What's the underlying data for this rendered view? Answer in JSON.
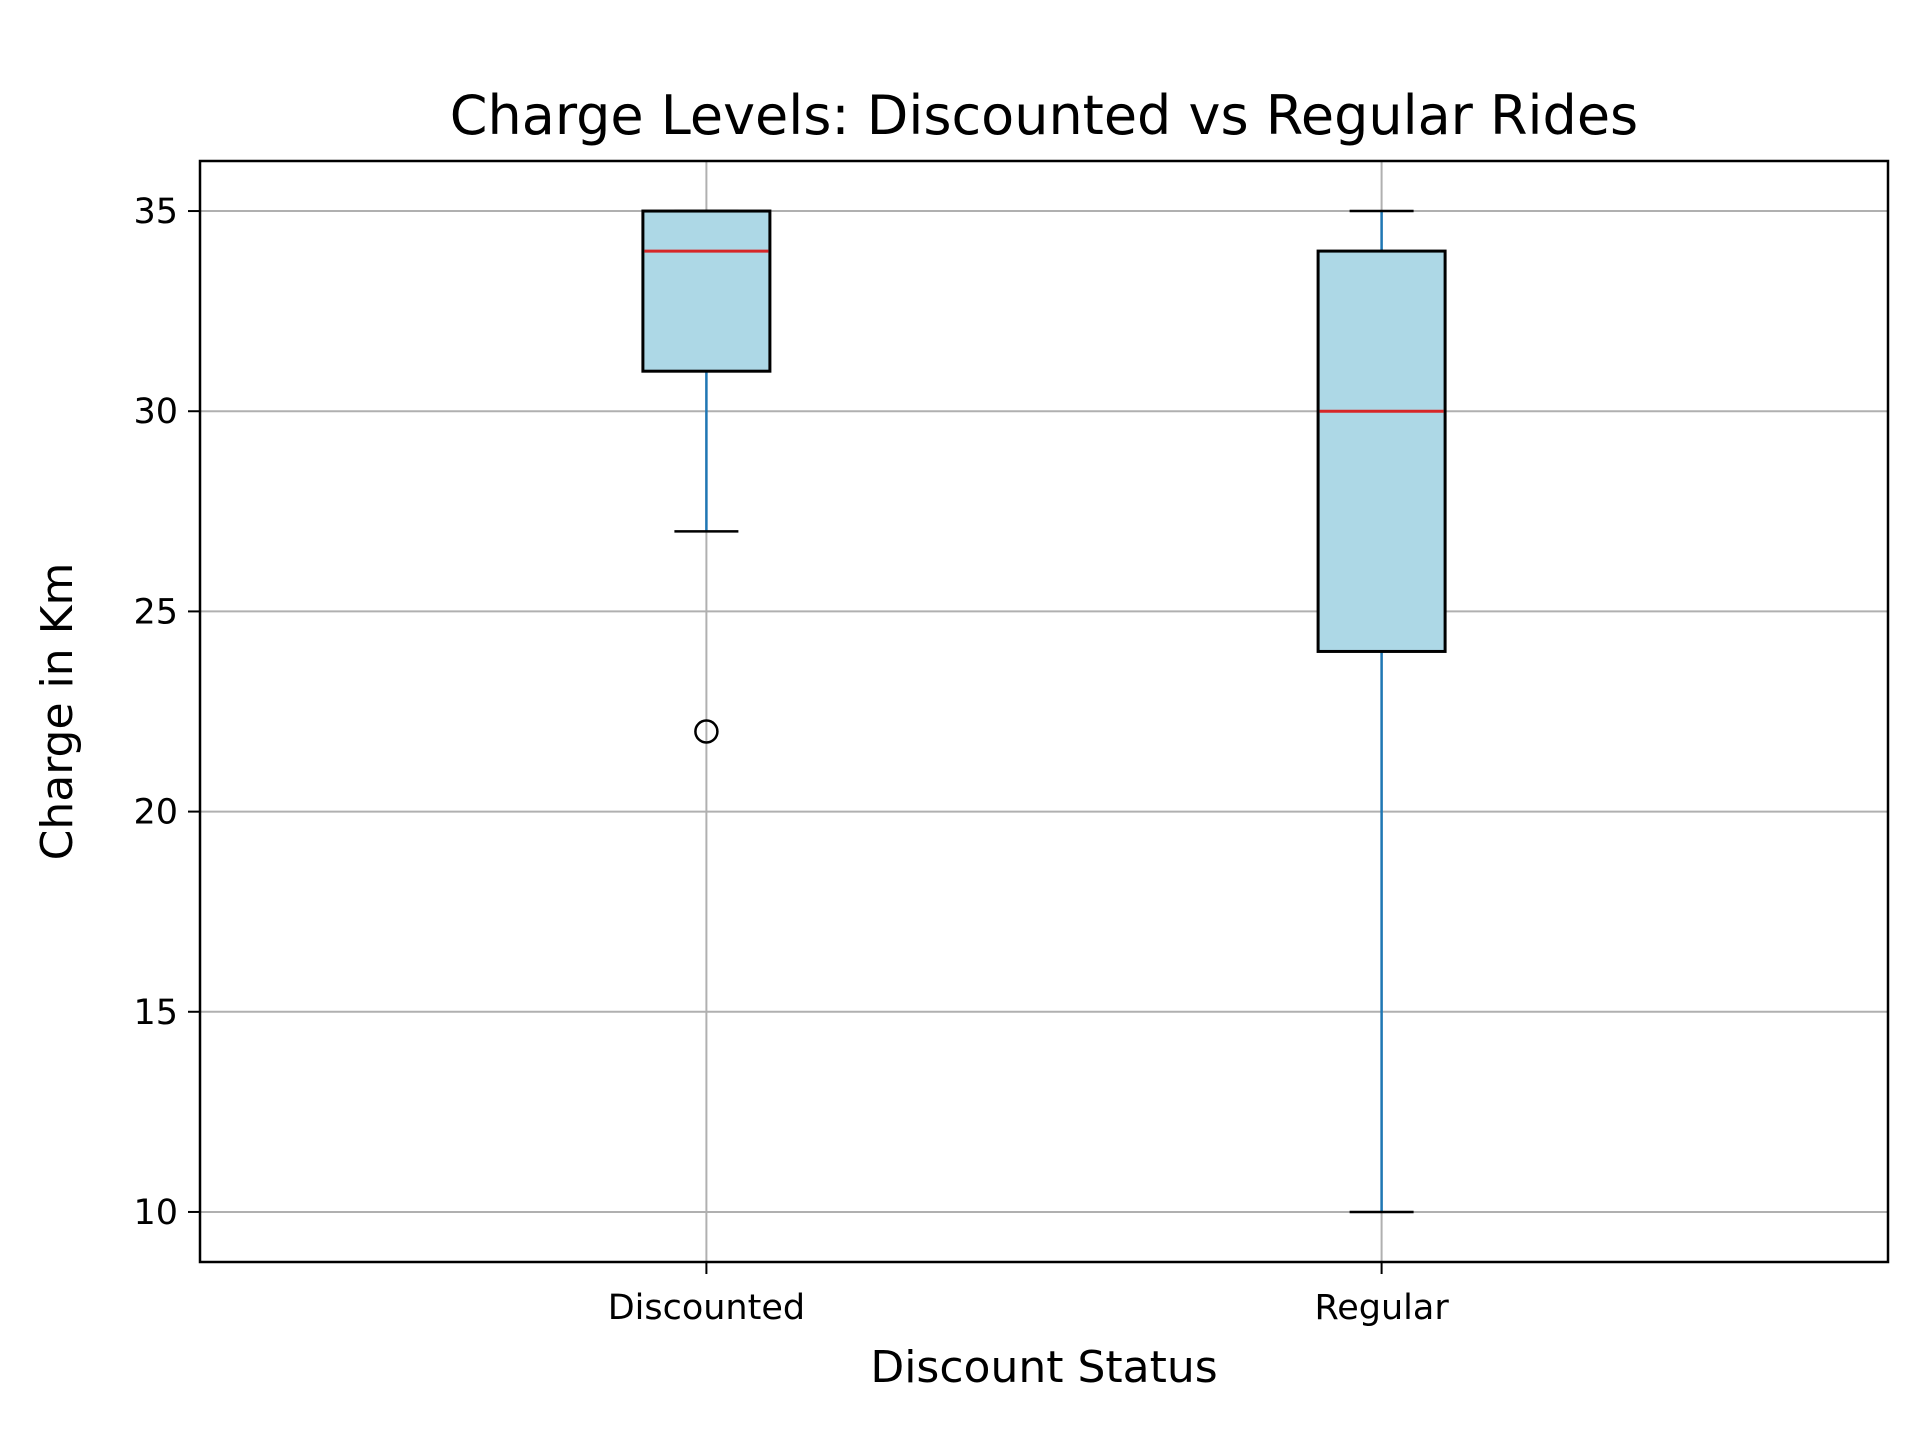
{
  "chart_data": {
    "type": "box",
    "title": "Charge Levels: Discounted vs Regular Rides",
    "xlabel": "Discount Status",
    "ylabel": "Charge in Km",
    "ylim": [
      8.75,
      36.25
    ],
    "yticks": [
      10,
      15,
      20,
      25,
      30,
      35
    ],
    "grid": true,
    "categories": [
      "Discounted",
      "Regular"
    ],
    "boxes": [
      {
        "category": "Discounted",
        "whisker_low": 27,
        "q1": 31,
        "median": 34,
        "q3": 35,
        "whisker_high": 35,
        "outliers": [
          22
        ]
      },
      {
        "category": "Regular",
        "whisker_low": 10,
        "q1": 24,
        "median": 30,
        "q3": 34,
        "whisker_high": 35,
        "outliers": []
      }
    ],
    "colors": {
      "box_fill": "#add8e6",
      "box_edge": "#000000",
      "median": "#d62728",
      "whisker": "#1f77b4",
      "grid": "#b0b0b0"
    }
  }
}
